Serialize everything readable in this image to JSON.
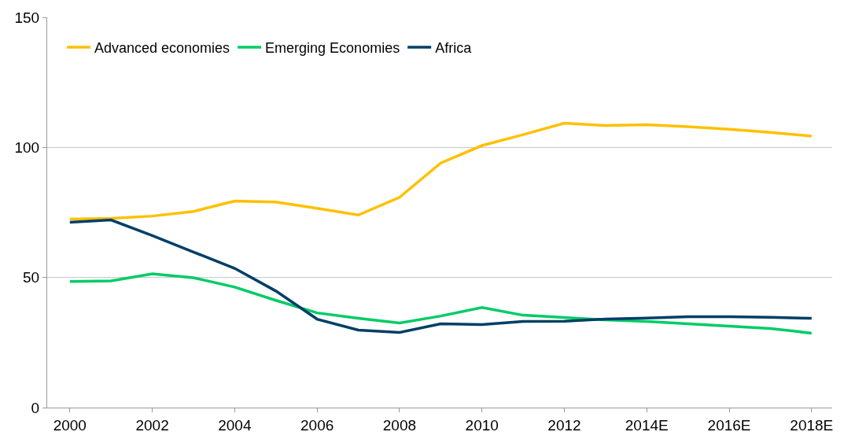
{
  "chart_data": {
    "type": "line",
    "categories": [
      "2000",
      null,
      "2002",
      null,
      "2004",
      null,
      "2006",
      null,
      "2008",
      null,
      "2010",
      null,
      "2012",
      null,
      "2014E",
      null,
      "2016E",
      null,
      "2018E"
    ],
    "series": [
      {
        "name": "Advanced economies",
        "color": "#ffc000",
        "values": [
          72.4,
          72.7,
          73.6,
          75.4,
          79.4,
          79,
          76.6,
          74,
          80.8,
          94,
          100.7,
          104.9,
          109.3,
          108.4,
          108.7,
          108,
          107,
          105.8,
          104.3
        ]
      },
      {
        "name": "Emerging Economies",
        "color": "#00cc66",
        "values": [
          48.5,
          48.7,
          51.4,
          49.9,
          46.3,
          41.2,
          36.4,
          34.3,
          32.5,
          35.2,
          38.5,
          35.5,
          34.6,
          33.7,
          33.1,
          32.2,
          31.3,
          30.4,
          28.6
        ]
      },
      {
        "name": "Africa",
        "color": "#003f66",
        "values": [
          71.2,
          72.1,
          66.1,
          59.8,
          53.5,
          44.8,
          34,
          29.8,
          28.9,
          32.2,
          31.9,
          33.1,
          33.2,
          34,
          34.4,
          34.9,
          34.9,
          34.7,
          34.3
        ]
      }
    ],
    "ylim": [
      0,
      150
    ],
    "yticks": [
      0,
      50,
      100,
      150
    ],
    "grid": "y",
    "legend": "top left",
    "marker": "none",
    "line_style": "solid"
  }
}
